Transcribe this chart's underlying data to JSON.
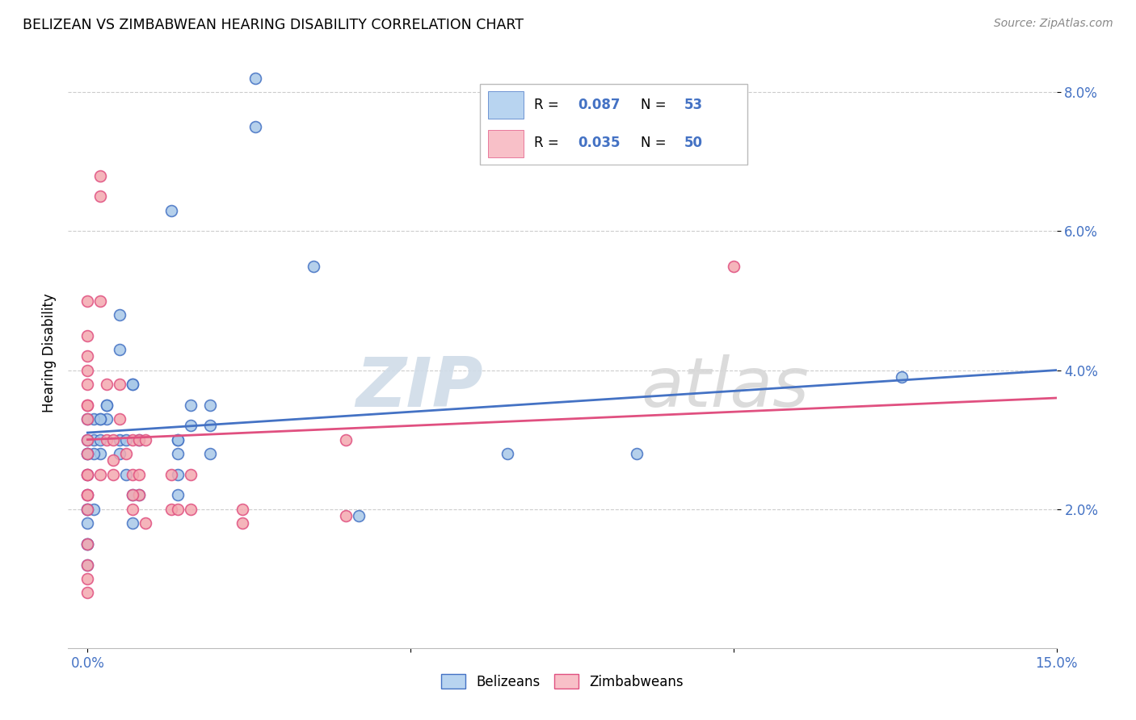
{
  "title": "BELIZEAN VS ZIMBABWEAN HEARING DISABILITY CORRELATION CHART",
  "source": "Source: ZipAtlas.com",
  "ylabel": "Hearing Disability",
  "x_min": 0.0,
  "x_max": 0.15,
  "y_min": 0.0,
  "y_max": 0.085,
  "x_ticks": [
    0.0,
    0.05,
    0.1,
    0.15
  ],
  "x_tick_labels": [
    "0.0%",
    "",
    "",
    "15.0%"
  ],
  "y_ticks": [
    0.02,
    0.04,
    0.06,
    0.08
  ],
  "y_tick_labels": [
    "2.0%",
    "4.0%",
    "6.0%",
    "8.0%"
  ],
  "blue_scatter_color": "#a8c8e8",
  "pink_scatter_color": "#f4a8b0",
  "blue_line_color": "#4472c4",
  "pink_line_color": "#e05080",
  "legend_blue_fill": "#b8d4f0",
  "legend_pink_fill": "#f8c0c8",
  "R_blue": 0.087,
  "N_blue": 53,
  "R_pink": 0.035,
  "N_pink": 50,
  "watermark_zip": "ZIP",
  "watermark_atlas": "atlas",
  "legend_label_blue": "Belizeans",
  "legend_label_pink": "Zimbabweans",
  "blue_trend_x0": 0.0,
  "blue_trend_y0": 0.031,
  "blue_trend_x1": 0.15,
  "blue_trend_y1": 0.04,
  "pink_trend_x0": 0.0,
  "pink_trend_y0": 0.03,
  "pink_trend_x1": 0.15,
  "pink_trend_y1": 0.036,
  "blue_x": [
    0.026,
    0.026,
    0.013,
    0.003,
    0.003,
    0.003,
    0.002,
    0.002,
    0.001,
    0.001,
    0.001,
    0.0,
    0.0,
    0.0,
    0.0,
    0.0,
    0.0,
    0.0,
    0.0,
    0.0,
    0.0,
    0.005,
    0.005,
    0.007,
    0.007,
    0.016,
    0.016,
    0.014,
    0.014,
    0.014,
    0.019,
    0.019,
    0.005,
    0.006,
    0.006,
    0.007,
    0.008,
    0.008,
    0.035,
    0.042,
    0.065,
    0.085,
    0.126,
    0.002,
    0.014,
    0.014,
    0.019,
    0.005,
    0.007,
    0.002,
    0.001,
    0.0,
    0.0
  ],
  "blue_y": [
    0.082,
    0.075,
    0.063,
    0.035,
    0.035,
    0.033,
    0.033,
    0.028,
    0.033,
    0.03,
    0.028,
    0.033,
    0.03,
    0.028,
    0.025,
    0.022,
    0.02,
    0.018,
    0.015,
    0.012,
    0.028,
    0.048,
    0.043,
    0.038,
    0.038,
    0.035,
    0.032,
    0.03,
    0.028,
    0.025,
    0.035,
    0.028,
    0.03,
    0.03,
    0.025,
    0.022,
    0.03,
    0.022,
    0.055,
    0.019,
    0.028,
    0.028,
    0.039,
    0.03,
    0.022,
    0.03,
    0.032,
    0.028,
    0.018,
    0.033,
    0.02,
    0.015,
    0.02
  ],
  "pink_x": [
    0.002,
    0.002,
    0.002,
    0.0,
    0.0,
    0.0,
    0.0,
    0.0,
    0.0,
    0.0,
    0.0,
    0.0,
    0.0,
    0.0,
    0.0,
    0.003,
    0.003,
    0.004,
    0.004,
    0.005,
    0.005,
    0.006,
    0.007,
    0.007,
    0.007,
    0.008,
    0.008,
    0.009,
    0.009,
    0.013,
    0.013,
    0.014,
    0.016,
    0.016,
    0.024,
    0.024,
    0.04,
    0.04,
    0.007,
    0.008,
    0.004,
    0.0,
    0.0,
    0.0,
    0.0,
    0.0,
    0.0,
    0.0,
    0.002,
    0.1
  ],
  "pink_y": [
    0.068,
    0.065,
    0.05,
    0.045,
    0.042,
    0.04,
    0.038,
    0.035,
    0.03,
    0.028,
    0.025,
    0.022,
    0.02,
    0.01,
    0.05,
    0.038,
    0.03,
    0.03,
    0.025,
    0.038,
    0.033,
    0.028,
    0.03,
    0.025,
    0.02,
    0.03,
    0.022,
    0.03,
    0.018,
    0.025,
    0.02,
    0.02,
    0.025,
    0.02,
    0.02,
    0.018,
    0.03,
    0.019,
    0.022,
    0.025,
    0.027,
    0.035,
    0.033,
    0.025,
    0.022,
    0.015,
    0.012,
    0.008,
    0.025,
    0.055
  ]
}
